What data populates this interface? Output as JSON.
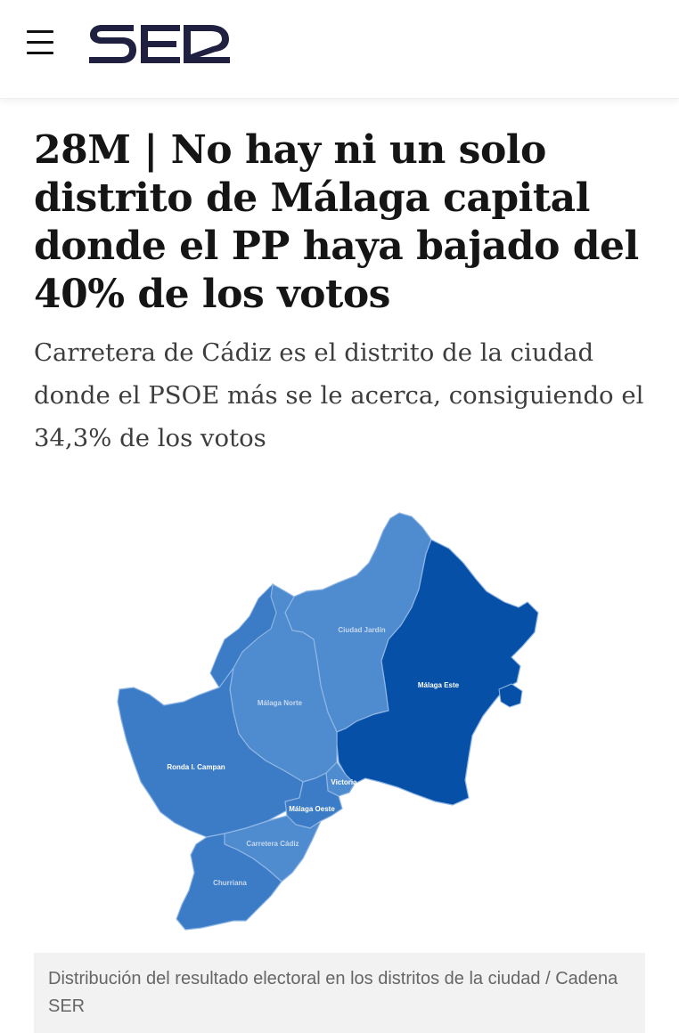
{
  "header": {
    "logo_text": "SER",
    "menu_icon": "hamburger-menu-icon"
  },
  "article": {
    "headline": "28M | No hay ni un solo distrito de Málaga capital donde el PP haya bajado del 40% de los votos",
    "subtitle": "Carretera de Cádiz es el distrito de la ciudad donde el PSOE más se le acerca, consiguiendo el 34,3% de los votos"
  },
  "map": {
    "districts": {
      "ciudad_jardin": "Ciudad Jardín",
      "malaga_norte": "Málaga Norte",
      "malaga_este": "Málaga Este",
      "ronda_campan": "Ronda I. Campan",
      "victoria": "Victoria",
      "malaga_oeste": "Málaga Oeste",
      "carretera_cadiz": "Carretera Cádiz",
      "churriana": "Churriana"
    },
    "colors": {
      "medium_blue": "#3c7cc6",
      "light_blue": "#4f8bcf",
      "dark_blue": "#0750a8",
      "border": "#8fb6e4"
    }
  },
  "caption": "Distribución del resultado electoral en los distritos de la ciudad / Cadena SER"
}
